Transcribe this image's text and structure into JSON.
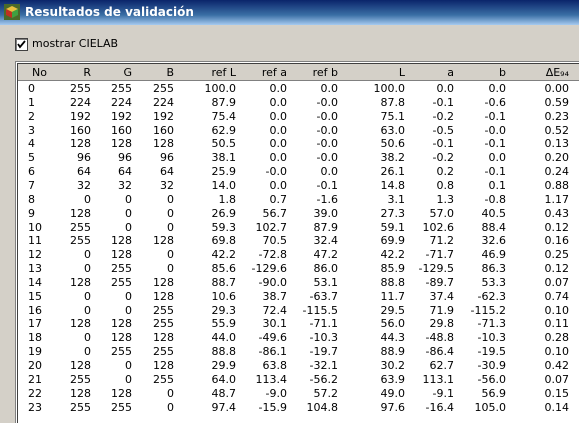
{
  "window": {
    "title": "Resultados de validación",
    "icon": "app-cube-icon"
  },
  "options": {
    "show_cielab_label": "mostrar CIELAB",
    "show_cielab_checked": true
  },
  "table": {
    "columns": [
      "No",
      "R",
      "G",
      "B",
      "ref L",
      "ref a",
      "ref b",
      "L",
      "a",
      "b",
      "ΔE₉₄"
    ],
    "rows": [
      [
        "0",
        "255",
        "255",
        "255",
        "100.0",
        "0.0",
        "0.0",
        "100.0",
        "0.0",
        "0.0",
        "0.00"
      ],
      [
        "1",
        "224",
        "224",
        "224",
        "87.9",
        "0.0",
        "-0.0",
        "87.8",
        "-0.1",
        "-0.6",
        "0.59"
      ],
      [
        "2",
        "192",
        "192",
        "192",
        "75.4",
        "0.0",
        "-0.0",
        "75.1",
        "-0.2",
        "-0.1",
        "0.23"
      ],
      [
        "3",
        "160",
        "160",
        "160",
        "62.9",
        "0.0",
        "-0.0",
        "63.0",
        "-0.5",
        "-0.0",
        "0.52"
      ],
      [
        "4",
        "128",
        "128",
        "128",
        "50.5",
        "0.0",
        "-0.0",
        "50.6",
        "-0.1",
        "-0.1",
        "0.13"
      ],
      [
        "5",
        "96",
        "96",
        "96",
        "38.1",
        "0.0",
        "-0.0",
        "38.2",
        "-0.2",
        "0.0",
        "0.20"
      ],
      [
        "6",
        "64",
        "64",
        "64",
        "25.9",
        "-0.0",
        "0.0",
        "26.1",
        "0.2",
        "-0.1",
        "0.24"
      ],
      [
        "7",
        "32",
        "32",
        "32",
        "14.0",
        "0.0",
        "-0.1",
        "14.8",
        "0.8",
        "0.1",
        "0.88"
      ],
      [
        "8",
        "0",
        "0",
        "0",
        "1.8",
        "0.7",
        "-1.6",
        "3.1",
        "1.3",
        "-0.8",
        "1.17"
      ],
      [
        "9",
        "128",
        "0",
        "0",
        "26.9",
        "56.7",
        "39.0",
        "27.3",
        "57.0",
        "40.5",
        "0.43"
      ],
      [
        "10",
        "255",
        "0",
        "0",
        "59.3",
        "102.7",
        "87.9",
        "59.1",
        "102.6",
        "88.4",
        "0.12"
      ],
      [
        "11",
        "255",
        "128",
        "128",
        "69.8",
        "70.5",
        "32.4",
        "69.9",
        "71.2",
        "32.6",
        "0.16"
      ],
      [
        "12",
        "0",
        "128",
        "0",
        "42.2",
        "-72.8",
        "47.2",
        "42.2",
        "-71.7",
        "46.9",
        "0.25"
      ],
      [
        "13",
        "0",
        "255",
        "0",
        "85.6",
        "-129.6",
        "86.0",
        "85.9",
        "-129.5",
        "86.3",
        "0.12"
      ],
      [
        "14",
        "128",
        "255",
        "128",
        "88.7",
        "-90.0",
        "53.1",
        "88.8",
        "-89.7",
        "53.3",
        "0.07"
      ],
      [
        "15",
        "0",
        "0",
        "128",
        "10.6",
        "38.7",
        "-63.7",
        "11.7",
        "37.4",
        "-62.3",
        "0.74"
      ],
      [
        "16",
        "0",
        "0",
        "255",
        "29.3",
        "72.4",
        "-115.5",
        "29.5",
        "71.9",
        "-115.2",
        "0.10"
      ],
      [
        "17",
        "128",
        "128",
        "255",
        "55.9",
        "30.1",
        "-71.1",
        "56.0",
        "29.8",
        "-71.3",
        "0.11"
      ],
      [
        "18",
        "0",
        "128",
        "128",
        "44.0",
        "-49.6",
        "-10.3",
        "44.3",
        "-48.8",
        "-10.3",
        "0.28"
      ],
      [
        "19",
        "0",
        "255",
        "255",
        "88.8",
        "-86.1",
        "-19.7",
        "88.9",
        "-86.4",
        "-19.5",
        "0.10"
      ],
      [
        "20",
        "128",
        "0",
        "128",
        "29.9",
        "63.8",
        "-32.1",
        "30.2",
        "62.7",
        "-30.9",
        "0.42"
      ],
      [
        "21",
        "255",
        "0",
        "255",
        "64.0",
        "113.4",
        "-56.2",
        "63.9",
        "113.1",
        "-56.0",
        "0.07"
      ],
      [
        "22",
        "128",
        "128",
        "0",
        "48.7",
        "-9.0",
        "57.2",
        "49.0",
        "-9.1",
        "56.9",
        "0.15"
      ],
      [
        "23",
        "255",
        "255",
        "0",
        "97.4",
        "-15.9",
        "104.8",
        "97.6",
        "-16.4",
        "105.0",
        "0.14"
      ]
    ]
  }
}
